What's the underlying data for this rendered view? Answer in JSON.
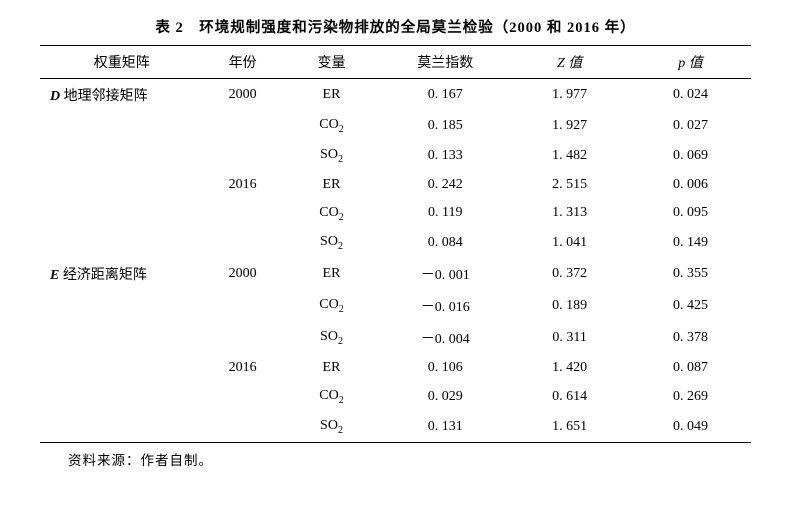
{
  "title": "表 2　环境规制强度和污染物排放的全局莫兰检验（2000 和 2016 年）",
  "headers": {
    "weight": "权重矩阵",
    "year": "年份",
    "var": "变量",
    "moran": "莫兰指数",
    "z": "Z 值",
    "p": "p 值"
  },
  "groups": [
    {
      "label_prefix": "D",
      "label_text": " 地理邻接矩阵",
      "years": [
        {
          "year": "2000",
          "rows": [
            {
              "var_html": "ER",
              "moran": "0. 167",
              "z": "1. 977",
              "p": "0. 024"
            },
            {
              "var_html": "CO<span class=\"sub\">2</span>",
              "moran": "0. 185",
              "z": "1. 927",
              "p": "0. 027"
            },
            {
              "var_html": "SO<span class=\"sub\">2</span>",
              "moran": "0. 133",
              "z": "1. 482",
              "p": "0. 069"
            }
          ]
        },
        {
          "year": "2016",
          "rows": [
            {
              "var_html": "ER",
              "moran": "0. 242",
              "z": "2. 515",
              "p": "0. 006"
            },
            {
              "var_html": "CO<span class=\"sub\">2</span>",
              "moran": "0. 119",
              "z": "1. 313",
              "p": "0. 095"
            },
            {
              "var_html": "SO<span class=\"sub\">2</span>",
              "moran": "0. 084",
              "z": "1. 041",
              "p": "0. 149"
            }
          ]
        }
      ]
    },
    {
      "label_prefix": "E",
      "label_text": " 经济距离矩阵",
      "years": [
        {
          "year": "2000",
          "rows": [
            {
              "var_html": "ER",
              "moran": "－0. 001",
              "z": "0. 372",
              "p": "0. 355"
            },
            {
              "var_html": "CO<span class=\"sub\">2</span>",
              "moran": "－0. 016",
              "z": "0. 189",
              "p": "0. 425"
            },
            {
              "var_html": "SO<span class=\"sub\">2</span>",
              "moran": "－0. 004",
              "z": "0. 311",
              "p": "0. 378"
            }
          ]
        },
        {
          "year": "2016",
          "rows": [
            {
              "var_html": "ER",
              "moran": "0. 106",
              "z": "1. 420",
              "p": "0. 087"
            },
            {
              "var_html": "CO<span class=\"sub\">2</span>",
              "moran": "0. 029",
              "z": "0. 614",
              "p": "0. 269"
            },
            {
              "var_html": "SO<span class=\"sub\">2</span>",
              "moran": "0. 131",
              "z": "1. 651",
              "p": "0. 049"
            }
          ]
        }
      ]
    }
  ],
  "note": "资料来源：作者自制。"
}
